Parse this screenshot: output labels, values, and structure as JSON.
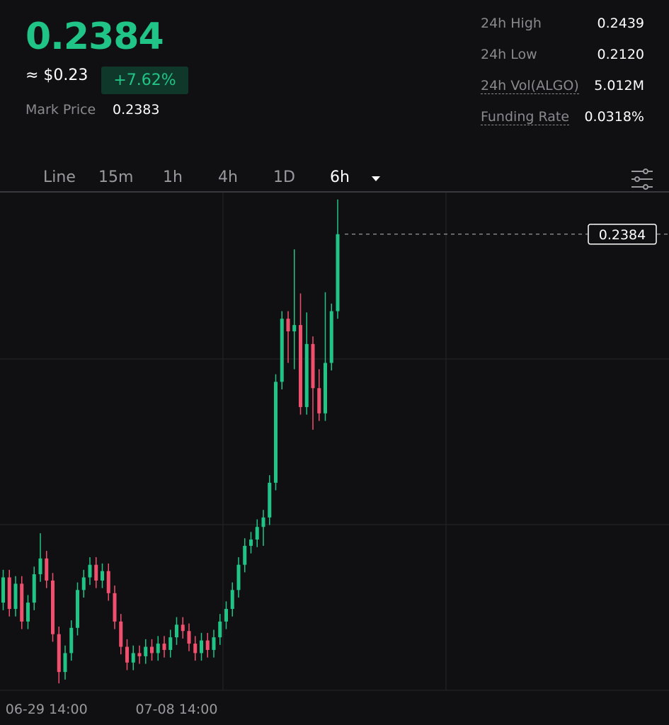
{
  "header": {
    "price": "0.2384",
    "usd": "≈ $0.23",
    "change": "+7.62%",
    "mark_label": "Mark Price",
    "mark_value": "0.2383"
  },
  "stats": [
    {
      "label": "24h High",
      "value": "0.2439"
    },
    {
      "label": "24h Low",
      "value": "0.2120"
    },
    {
      "label": "24h Vol(ALGO)",
      "value": "5.012M"
    },
    {
      "label": "Funding Rate",
      "value": "0.0318%"
    }
  ],
  "tabs": [
    "Line",
    "15m",
    "1h",
    "4h",
    "1D",
    "6h"
  ],
  "chart_data": {
    "type": "candlestick",
    "categories": [
      null,
      null,
      null,
      null,
      null,
      null,
      null,
      "06-29 14:00",
      null,
      null,
      null,
      null,
      null,
      null,
      null,
      null,
      null,
      null,
      null,
      null,
      null,
      null,
      null,
      null,
      null,
      null,
      null,
      null,
      "07-08 14:00",
      null,
      null,
      null,
      null,
      null,
      null,
      null,
      null,
      null,
      null,
      null,
      null,
      null,
      null,
      null,
      null,
      null,
      null,
      null,
      null,
      null,
      null,
      null,
      null,
      null,
      null
    ],
    "open": [
      0.18,
      0.184,
      0.179,
      0.183,
      0.177,
      0.18,
      0.1845,
      0.187,
      0.1835,
      0.175,
      0.169,
      0.172,
      0.176,
      0.182,
      0.184,
      0.186,
      0.1835,
      0.185,
      0.1815,
      0.177,
      0.173,
      0.1705,
      0.172,
      0.1715,
      0.173,
      0.172,
      0.1735,
      0.1725,
      0.1745,
      0.1765,
      0.1755,
      0.1735,
      0.172,
      0.174,
      0.1725,
      0.1745,
      0.177,
      0.179,
      0.182,
      0.186,
      0.189,
      0.19,
      0.192,
      0.1935,
      0.199,
      0.215,
      0.225,
      0.223,
      0.224,
      0.211,
      0.221,
      0.214,
      0.21,
      0.218,
      0.2262
    ],
    "high": [
      0.1852,
      0.1852,
      0.1842,
      0.1842,
      0.1812,
      0.1857,
      0.191,
      0.1882,
      0.1847,
      0.1762,
      0.1732,
      0.1772,
      0.1832,
      0.1852,
      0.1872,
      0.1872,
      0.1862,
      0.1862,
      0.1827,
      0.1782,
      0.1742,
      0.1732,
      0.1732,
      0.1742,
      0.1742,
      0.1747,
      0.1747,
      0.1757,
      0.1777,
      0.1777,
      0.1767,
      0.1747,
      0.1752,
      0.1752,
      0.1757,
      0.1782,
      0.1802,
      0.1832,
      0.1872,
      0.1902,
      0.1912,
      0.1932,
      0.1947,
      0.2002,
      0.2162,
      0.2262,
      0.2262,
      0.236,
      0.229,
      0.226,
      0.2222,
      0.217,
      0.2292,
      0.2274,
      0.2439
    ],
    "low": [
      0.1788,
      0.1778,
      0.1778,
      0.1758,
      0.1758,
      0.1788,
      0.1833,
      0.1823,
      0.1738,
      0.1672,
      0.1678,
      0.1708,
      0.1748,
      0.1808,
      0.1828,
      0.1823,
      0.1823,
      0.1803,
      0.1758,
      0.1718,
      0.1693,
      0.1693,
      0.1703,
      0.1703,
      0.1708,
      0.1708,
      0.1713,
      0.1713,
      0.1733,
      0.1743,
      0.1723,
      0.1708,
      0.1708,
      0.1713,
      0.1713,
      0.1733,
      0.1758,
      0.1778,
      0.1808,
      0.1848,
      0.1878,
      0.1888,
      0.189,
      0.1923,
      0.1978,
      0.2138,
      0.218,
      0.217,
      0.2098,
      0.2098,
      0.2074,
      0.2088,
      0.2088,
      0.2168,
      0.225
    ],
    "close": [
      0.184,
      0.179,
      0.183,
      0.177,
      0.18,
      0.1845,
      0.187,
      0.1835,
      0.175,
      0.169,
      0.172,
      0.176,
      0.182,
      0.184,
      0.186,
      0.1835,
      0.185,
      0.1815,
      0.177,
      0.173,
      0.1705,
      0.172,
      0.1715,
      0.173,
      0.172,
      0.1735,
      0.1725,
      0.1745,
      0.1765,
      0.1755,
      0.1735,
      0.172,
      0.174,
      0.1725,
      0.1745,
      0.177,
      0.179,
      0.182,
      0.186,
      0.189,
      0.19,
      0.192,
      0.1935,
      0.199,
      0.215,
      0.225,
      0.223,
      0.224,
      0.211,
      0.221,
      0.214,
      0.21,
      0.218,
      0.2262,
      0.2384
    ],
    "ylim": [
      0.1661,
      0.245
    ],
    "last_price": 0.2384,
    "up_color": "#20c486",
    "down_color": "#f0506e"
  }
}
